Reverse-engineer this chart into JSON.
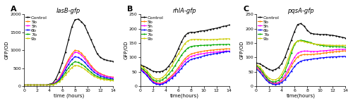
{
  "panel_A": {
    "title": "lasB-gfp",
    "xlabel": "time (hours)",
    "ylabel": "GFP/OD",
    "xlim": [
      0,
      14
    ],
    "ylim": [
      0,
      2000
    ],
    "yticks": [
      0,
      500,
      1000,
      1500,
      2000
    ],
    "xticks": [
      0,
      2,
      4,
      6,
      8,
      10,
      12,
      14
    ],
    "label": "A",
    "series": {
      "Control": {
        "color": "#000000",
        "x": [
          0,
          0.5,
          1,
          1.5,
          2,
          2.5,
          3,
          3.5,
          4,
          4.5,
          5,
          5.5,
          6,
          6.5,
          7,
          7.5,
          8,
          8.5,
          9,
          9.5,
          10,
          10.5,
          11,
          11.5,
          12,
          12.5,
          13,
          13.5,
          14
        ],
        "y": [
          30,
          30,
          30,
          30,
          30,
          30,
          30,
          30,
          50,
          80,
          200,
          400,
          650,
          950,
          1300,
          1650,
          1850,
          1870,
          1800,
          1700,
          1500,
          1300,
          1100,
          900,
          800,
          750,
          720,
          700,
          690
        ]
      },
      "5b": {
        "color": "#FF7F00",
        "x": [
          0,
          0.5,
          1,
          1.5,
          2,
          2.5,
          3,
          3.5,
          4,
          4.5,
          5,
          5.5,
          6,
          6.5,
          7,
          7.5,
          8,
          8.5,
          9,
          9.5,
          10,
          10.5,
          11,
          11.5,
          12,
          12.5,
          13,
          13.5,
          14
        ],
        "y": [
          30,
          30,
          30,
          30,
          30,
          30,
          30,
          30,
          40,
          60,
          120,
          220,
          380,
          580,
          750,
          900,
          1000,
          980,
          920,
          820,
          700,
          580,
          480,
          400,
          350,
          310,
          280,
          260,
          250
        ]
      },
      "5h": {
        "color": "#FF00FF",
        "x": [
          0,
          0.5,
          1,
          1.5,
          2,
          2.5,
          3,
          3.5,
          4,
          4.5,
          5,
          5.5,
          6,
          6.5,
          7,
          7.5,
          8,
          8.5,
          9,
          9.5,
          10,
          10.5,
          11,
          11.5,
          12,
          12.5,
          13,
          13.5,
          14
        ],
        "y": [
          30,
          30,
          30,
          30,
          30,
          30,
          30,
          30,
          40,
          55,
          110,
          200,
          350,
          530,
          700,
          840,
          950,
          930,
          870,
          770,
          650,
          540,
          450,
          380,
          330,
          295,
          268,
          250,
          240
        ]
      },
      "6b": {
        "color": "#0000FF",
        "x": [
          0,
          0.5,
          1,
          1.5,
          2,
          2.5,
          3,
          3.5,
          4,
          4.5,
          5,
          5.5,
          6,
          6.5,
          7,
          7.5,
          8,
          8.5,
          9,
          9.5,
          10,
          10.5,
          11,
          11.5,
          12,
          12.5,
          13,
          13.5,
          14
        ],
        "y": [
          30,
          30,
          30,
          30,
          30,
          30,
          30,
          30,
          38,
          50,
          95,
          175,
          300,
          460,
          610,
          740,
          820,
          800,
          750,
          670,
          570,
          470,
          390,
          330,
          285,
          255,
          232,
          215,
          205
        ]
      },
      "7b": {
        "color": "#00AA00",
        "x": [
          0,
          0.5,
          1,
          1.5,
          2,
          2.5,
          3,
          3.5,
          4,
          4.5,
          5,
          5.5,
          6,
          6.5,
          7,
          7.5,
          8,
          8.5,
          9,
          9.5,
          10,
          10.5,
          11,
          11.5,
          12,
          12.5,
          13,
          13.5,
          14
        ],
        "y": [
          30,
          30,
          30,
          30,
          30,
          30,
          30,
          30,
          35,
          45,
          80,
          145,
          250,
          380,
          510,
          620,
          680,
          660,
          620,
          555,
          470,
          390,
          320,
          270,
          235,
          212,
          195,
          182,
          175
        ]
      },
      "9b": {
        "color": "#CCCC00",
        "x": [
          0,
          0.5,
          1,
          1.5,
          2,
          2.5,
          3,
          3.5,
          4,
          4.5,
          5,
          5.5,
          6,
          6.5,
          7,
          7.5,
          8,
          8.5,
          9,
          9.5,
          10,
          10.5,
          11,
          11.5,
          12,
          12.5,
          13,
          13.5,
          14
        ],
        "y": [
          30,
          30,
          30,
          30,
          30,
          30,
          30,
          30,
          33,
          42,
          70,
          120,
          200,
          310,
          420,
          515,
          580,
          565,
          530,
          480,
          405,
          335,
          275,
          235,
          205,
          185,
          172,
          162,
          156
        ]
      }
    }
  },
  "panel_B": {
    "title": "rhlA-gfp",
    "xlabel": "time(hours)",
    "ylabel": "GFP/OD",
    "xlim": [
      0,
      14
    ],
    "ylim": [
      0,
      250
    ],
    "yticks": [
      0,
      50,
      100,
      150,
      200,
      250
    ],
    "xticks": [
      0,
      2,
      4,
      6,
      8,
      10,
      12,
      14
    ],
    "label": "B",
    "series": {
      "Control": {
        "color": "#000000",
        "x": [
          0,
          0.5,
          1,
          1.5,
          2,
          2.5,
          3,
          3.5,
          4,
          4.5,
          5,
          5.5,
          6,
          6.5,
          7,
          7.5,
          8,
          8.5,
          9,
          9.5,
          10,
          10.5,
          11,
          11.5,
          12,
          12.5,
          13,
          13.5,
          14
        ],
        "y": [
          75,
          70,
          65,
          58,
          52,
          50,
          50,
          52,
          58,
          70,
          85,
          105,
          130,
          155,
          175,
          185,
          188,
          187,
          190,
          192,
          193,
          195,
          198,
          200,
          202,
          205,
          208,
          210,
          213
        ]
      },
      "5b": {
        "color": "#FF7F00",
        "x": [
          0,
          0.5,
          1,
          1.5,
          2,
          2.5,
          3,
          3.5,
          4,
          4.5,
          5,
          5.5,
          6,
          6.5,
          7,
          7.5,
          8,
          8.5,
          9,
          9.5,
          10,
          10.5,
          11,
          11.5,
          12,
          12.5,
          13,
          13.5,
          14
        ],
        "y": [
          65,
          55,
          45,
          30,
          18,
          12,
          10,
          12,
          18,
          28,
          38,
          50,
          65,
          80,
          95,
          105,
          112,
          115,
          118,
          120,
          122,
          124,
          125,
          126,
          127,
          128,
          129,
          130,
          130
        ]
      },
      "5h": {
        "color": "#FF00FF",
        "x": [
          0,
          0.5,
          1,
          1.5,
          2,
          2.5,
          3,
          3.5,
          4,
          4.5,
          5,
          5.5,
          6,
          6.5,
          7,
          7.5,
          8,
          8.5,
          9,
          9.5,
          10,
          10.5,
          11,
          11.5,
          12,
          12.5,
          13,
          13.5,
          14
        ],
        "y": [
          62,
          52,
          42,
          28,
          15,
          10,
          8,
          10,
          15,
          25,
          33,
          45,
          58,
          72,
          87,
          97,
          104,
          107,
          110,
          112,
          114,
          116,
          117,
          118,
          119,
          120,
          121,
          122,
          122
        ]
      },
      "6b": {
        "color": "#0000FF",
        "x": [
          0,
          0.5,
          1,
          1.5,
          2,
          2.5,
          3,
          3.5,
          4,
          4.5,
          5,
          5.5,
          6,
          6.5,
          7,
          7.5,
          8,
          8.5,
          9,
          9.5,
          10,
          10.5,
          11,
          11.5,
          12,
          12.5,
          13,
          13.5,
          14
        ],
        "y": [
          58,
          48,
          38,
          24,
          12,
          7,
          5,
          7,
          12,
          20,
          28,
          38,
          50,
          62,
          76,
          86,
          93,
          96,
          99,
          102,
          105,
          108,
          110,
          112,
          114,
          116,
          118,
          120,
          121
        ]
      },
      "7b": {
        "color": "#00AA00",
        "x": [
          0,
          0.5,
          1,
          1.5,
          2,
          2.5,
          3,
          3.5,
          4,
          4.5,
          5,
          5.5,
          6,
          6.5,
          7,
          7.5,
          8,
          8.5,
          9,
          9.5,
          10,
          10.5,
          11,
          11.5,
          12,
          12.5,
          13,
          13.5,
          14
        ],
        "y": [
          65,
          58,
          48,
          35,
          22,
          18,
          18,
          22,
          30,
          42,
          55,
          72,
          90,
          108,
          122,
          133,
          138,
          140,
          141,
          142,
          142,
          143,
          143,
          144,
          144,
          145,
          145,
          145,
          146
        ]
      },
      "9b": {
        "color": "#CCCC00",
        "x": [
          0,
          0.5,
          1,
          1.5,
          2,
          2.5,
          3,
          3.5,
          4,
          4.5,
          5,
          5.5,
          6,
          6.5,
          7,
          7.5,
          8,
          8.5,
          9,
          9.5,
          10,
          10.5,
          11,
          11.5,
          12,
          12.5,
          13,
          13.5,
          14
        ],
        "y": [
          72,
          65,
          55,
          42,
          30,
          25,
          25,
          30,
          40,
          55,
          72,
          93,
          112,
          130,
          148,
          158,
          162,
          163,
          163,
          163,
          162,
          162,
          162,
          163,
          163,
          164,
          164,
          165,
          165
        ]
      }
    }
  },
  "panel_C": {
    "title": "pqsA-gfp",
    "xlabel": "time(hours)",
    "ylabel": "GFP/OD",
    "xlim": [
      0,
      14
    ],
    "ylim": [
      0,
      250
    ],
    "yticks": [
      0,
      50,
      100,
      150,
      200,
      250
    ],
    "xticks": [
      0,
      2,
      4,
      6,
      8,
      10,
      12,
      14
    ],
    "label": "C",
    "series": {
      "Control": {
        "color": "#000000",
        "x": [
          0,
          0.5,
          1,
          1.5,
          2,
          2.5,
          3,
          3.5,
          4,
          4.5,
          5,
          5.5,
          6,
          6.5,
          7,
          7.5,
          8,
          8.5,
          9,
          9.5,
          10,
          10.5,
          11,
          11.5,
          12,
          12.5,
          13,
          13.5,
          14
        ],
        "y": [
          80,
          78,
          72,
          65,
          58,
          55,
          58,
          65,
          78,
          100,
          130,
          160,
          190,
          215,
          218,
          210,
          195,
          185,
          182,
          181,
          180,
          180,
          180,
          178,
          177,
          175,
          173,
          170,
          168
        ]
      },
      "5b": {
        "color": "#FF7F00",
        "x": [
          0,
          0.5,
          1,
          1.5,
          2,
          2.5,
          3,
          3.5,
          4,
          4.5,
          5,
          5.5,
          6,
          6.5,
          7,
          7.5,
          8,
          8.5,
          9,
          9.5,
          10,
          10.5,
          11,
          11.5,
          12,
          12.5,
          13,
          13.5,
          14
        ],
        "y": [
          65,
          55,
          42,
          28,
          15,
          10,
          8,
          10,
          18,
          30,
          48,
          70,
          88,
          102,
          108,
          110,
          110,
          110,
          111,
          112,
          113,
          115,
          116,
          118,
          119,
          120,
          121,
          122,
          123
        ]
      },
      "5h": {
        "color": "#FF00FF",
        "x": [
          0,
          0.5,
          1,
          1.5,
          2,
          2.5,
          3,
          3.5,
          4,
          4.5,
          5,
          5.5,
          6,
          6.5,
          7,
          7.5,
          8,
          8.5,
          9,
          9.5,
          10,
          10.5,
          11,
          11.5,
          12,
          12.5,
          13,
          13.5,
          14
        ],
        "y": [
          68,
          58,
          45,
          30,
          18,
          12,
          10,
          13,
          22,
          38,
          58,
          80,
          100,
          115,
          120,
          122,
          122,
          121,
          121,
          121,
          122,
          123,
          124,
          125,
          126,
          127,
          128,
          128,
          129
        ]
      },
      "6b": {
        "color": "#0000FF",
        "x": [
          0,
          0.5,
          1,
          1.5,
          2,
          2.5,
          3,
          3.5,
          4,
          4.5,
          5,
          5.5,
          6,
          6.5,
          7,
          7.5,
          8,
          8.5,
          9,
          9.5,
          10,
          10.5,
          11,
          11.5,
          12,
          12.5,
          13,
          13.5,
          14
        ],
        "y": [
          60,
          50,
          36,
          22,
          12,
          7,
          5,
          7,
          13,
          22,
          36,
          52,
          68,
          80,
          87,
          90,
          92,
          93,
          95,
          96,
          98,
          99,
          100,
          101,
          102,
          102,
          103,
          103,
          104
        ]
      },
      "7b": {
        "color": "#00AA00",
        "x": [
          0,
          0.5,
          1,
          1.5,
          2,
          2.5,
          3,
          3.5,
          4,
          4.5,
          5,
          5.5,
          6,
          6.5,
          7,
          7.5,
          8,
          8.5,
          9,
          9.5,
          10,
          10.5,
          11,
          11.5,
          12,
          12.5,
          13,
          13.5,
          14
        ],
        "y": [
          72,
          62,
          48,
          32,
          20,
          15,
          15,
          20,
          32,
          52,
          80,
          115,
          145,
          158,
          160,
          158,
          155,
          152,
          148,
          145,
          143,
          141,
          140,
          139,
          138,
          138,
          137,
          137,
          136
        ]
      },
      "9b": {
        "color": "#CCCC00",
        "x": [
          0,
          0.5,
          1,
          1.5,
          2,
          2.5,
          3,
          3.5,
          4,
          4.5,
          5,
          5.5,
          6,
          6.5,
          7,
          7.5,
          8,
          8.5,
          9,
          9.5,
          10,
          10.5,
          11,
          11.5,
          12,
          12.5,
          13,
          13.5,
          14
        ],
        "y": [
          75,
          68,
          55,
          38,
          28,
          22,
          22,
          28,
          42,
          65,
          95,
          125,
          148,
          158,
          158,
          155,
          152,
          150,
          148,
          146,
          145,
          144,
          143,
          143,
          142,
          142,
          142,
          142,
          142
        ]
      }
    }
  },
  "legend_order": [
    "Control",
    "5b",
    "5h",
    "6b",
    "7b",
    "9b"
  ],
  "line_width": 0.8,
  "marker": "o",
  "marker_size": 1.5,
  "font_size_title": 6.0,
  "font_size_label": 5.0,
  "font_size_tick": 4.5,
  "font_size_legend": 4.5,
  "font_size_panel_label": 8
}
